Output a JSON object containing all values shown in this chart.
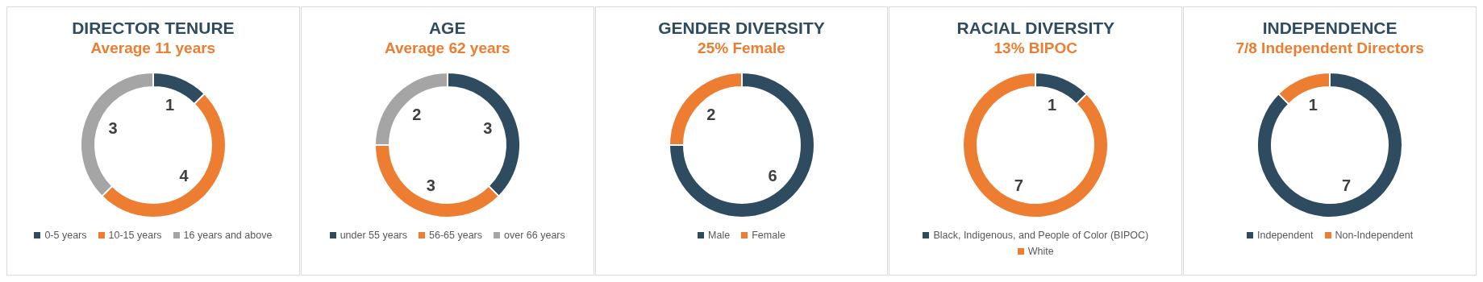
{
  "chart_data": [
    {
      "type": "donut",
      "title": "DIRECTOR TENURE",
      "subtitle": "Average 11 years",
      "categories": [
        "0-5 years",
        "10-15 years",
        "16 years and above"
      ],
      "values": [
        1,
        4,
        3
      ],
      "colors": [
        "#2e4b5f",
        "#ed7d31",
        "#a5a5a5"
      ],
      "data_labels": true,
      "legend": "bottom"
    },
    {
      "type": "donut",
      "title": "AGE",
      "subtitle": "Average 62 years",
      "categories": [
        "under 55 years",
        "56-65 years",
        "over 66 years"
      ],
      "values": [
        3,
        3,
        2
      ],
      "colors": [
        "#2e4b5f",
        "#ed7d31",
        "#a5a5a5"
      ],
      "data_labels": true,
      "legend": "bottom"
    },
    {
      "type": "donut",
      "title": "GENDER DIVERSITY",
      "subtitle": "25% Female",
      "categories": [
        "Male",
        "Female"
      ],
      "values": [
        6,
        2
      ],
      "colors": [
        "#2e4b5f",
        "#ed7d31"
      ],
      "data_labels": true,
      "legend": "bottom"
    },
    {
      "type": "donut",
      "title": "RACIAL DIVERSITY",
      "subtitle": "13% BIPOC",
      "categories": [
        "Black, Indigenous, and People of Color (BIPOC)",
        "White"
      ],
      "values": [
        1,
        7
      ],
      "colors": [
        "#2e4b5f",
        "#ed7d31"
      ],
      "data_labels": true,
      "legend": "bottom"
    },
    {
      "type": "donut",
      "title": "INDEPENDENCE",
      "subtitle": "7/8 Independent Directors",
      "categories": [
        "Independent",
        "Non-Independent"
      ],
      "values": [
        7,
        1
      ],
      "colors": [
        "#2e4b5f",
        "#ed7d31"
      ],
      "data_labels": true,
      "legend": "bottom"
    }
  ]
}
